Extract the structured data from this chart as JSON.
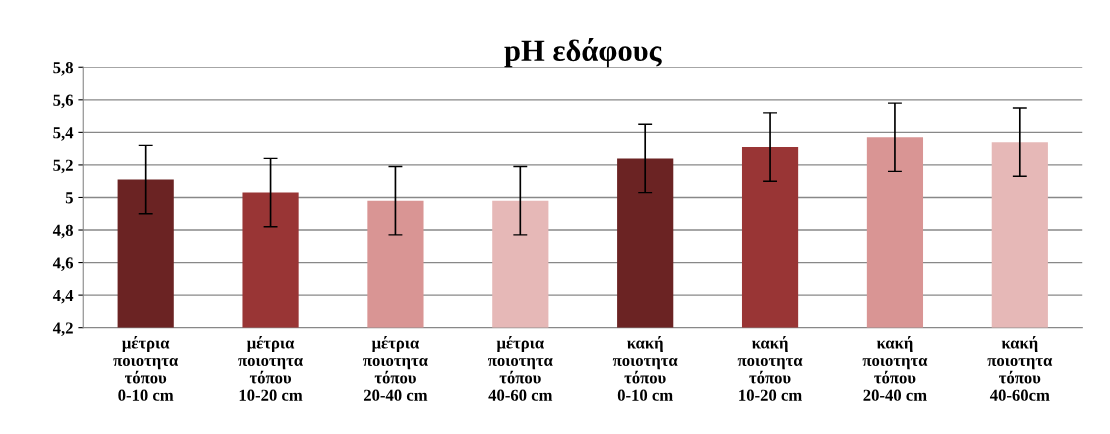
{
  "chart_data": {
    "type": "bar",
    "title": "pH εδάφους",
    "categories": [
      "μέτρια\nποιοτητα\nτόπου\n0-10 cm",
      "μέτρια\nποιοτητα\nτόπου\n10-20 cm",
      "μέτρια\nποιοτητα\nτόπου\n20-40 cm",
      "μέτρια\nποιοτητα\nτόπου\n40-60 cm",
      "κακή\nποιοτητα\nτόπου\n0-10 cm",
      "κακή\nποιοτητα\nτόπου\n10-20 cm",
      "κακή\nποιοτητα\nτόπου\n20-40 cm",
      "κακή\nποιοτητα\nτόπου\n40-60cm"
    ],
    "values": [
      5.11,
      5.03,
      4.98,
      4.98,
      5.24,
      5.31,
      5.37,
      5.34
    ],
    "errors": [
      0.21,
      0.21,
      0.21,
      0.21,
      0.21,
      0.21,
      0.21,
      0.21
    ],
    "colors": [
      "#6b2323",
      "#993535",
      "#d99594",
      "#e6b8b7",
      "#6b2323",
      "#993535",
      "#d99594",
      "#e6b8b7"
    ],
    "ylim": [
      4.2,
      5.8
    ],
    "yticks": [
      {
        "value": 4.2,
        "label": "4,2"
      },
      {
        "value": 4.4,
        "label": "4,4"
      },
      {
        "value": 4.6,
        "label": "4,6"
      },
      {
        "value": 4.8,
        "label": "4,8"
      },
      {
        "value": 5,
        "label": "5"
      },
      {
        "value": 5.2,
        "label": "5,2"
      },
      {
        "value": 5.4,
        "label": "5,4"
      },
      {
        "value": 5.6,
        "label": "5,6"
      },
      {
        "value": 5.8,
        "label": "5,8"
      }
    ],
    "grid": "y"
  }
}
